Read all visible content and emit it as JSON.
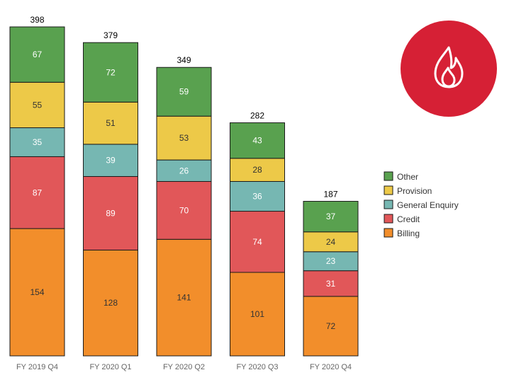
{
  "chart_data": {
    "type": "bar",
    "stacked": true,
    "categories": [
      "FY 2019 Q4",
      "FY 2020 Q1",
      "FY 2020 Q2",
      "FY 2020 Q3",
      "FY 2020 Q4"
    ],
    "series": [
      {
        "name": "Billing",
        "color": "#f28e2b",
        "values": [
          154,
          128,
          141,
          101,
          72
        ]
      },
      {
        "name": "Credit",
        "color": "#e15759",
        "values": [
          87,
          89,
          70,
          74,
          31
        ]
      },
      {
        "name": "General Enquiry",
        "color": "#76b7b2",
        "values": [
          35,
          39,
          26,
          36,
          23
        ]
      },
      {
        "name": "Provision",
        "color": "#edc948",
        "values": [
          55,
          51,
          53,
          28,
          24
        ]
      },
      {
        "name": "Other",
        "color": "#59a14f",
        "values": [
          67,
          72,
          59,
          43,
          37
        ]
      }
    ],
    "totals": [
      "398",
      "379",
      "349",
      "282",
      "187"
    ],
    "legend_order": [
      "Other",
      "Provision",
      "General Enquiry",
      "Credit",
      "Billing"
    ],
    "legend_position": "right",
    "ylim": [
      0,
      398
    ],
    "grid": false,
    "xlabel": "",
    "ylabel": ""
  },
  "badge": {
    "icon": "flame-icon",
    "color": "#d62035"
  }
}
